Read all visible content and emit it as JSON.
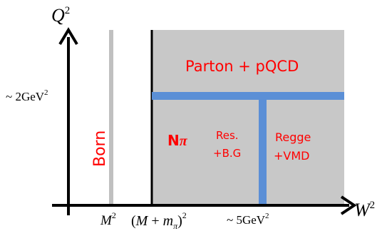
{
  "axes": {
    "y_label_base": "Q",
    "y_label_exp": "2",
    "x_label_base": "W",
    "x_label_exp": "2"
  },
  "y_ticks": {
    "q2_2gev": {
      "prefix": "~ 2GeV",
      "exp": "2"
    }
  },
  "x_ticks": {
    "m2": {
      "base": "M",
      "exp": "2"
    },
    "threshold": {
      "open": "(",
      "m": "M",
      "plus": " + ",
      "mpi": "m",
      "pi_sub": "π",
      "close": ")",
      "exp": "2"
    },
    "w2_5gev": {
      "prefix": "~ 5GeV",
      "exp": "2"
    }
  },
  "regions": {
    "born": "Born",
    "parton": "Parton + pQCD",
    "npi_n": "N",
    "npi_pi": "π",
    "res_line1": "Res.",
    "res_line2": "+B.G",
    "regge_line1": "Regge",
    "regge_line2": "+VMD"
  },
  "colors": {
    "shaded_region": "#c8c8c8",
    "born_line": "#c0c0c0",
    "boundary_blue": "#5b8fd6",
    "label_red": "#ff0000",
    "axis": "#000000"
  }
}
